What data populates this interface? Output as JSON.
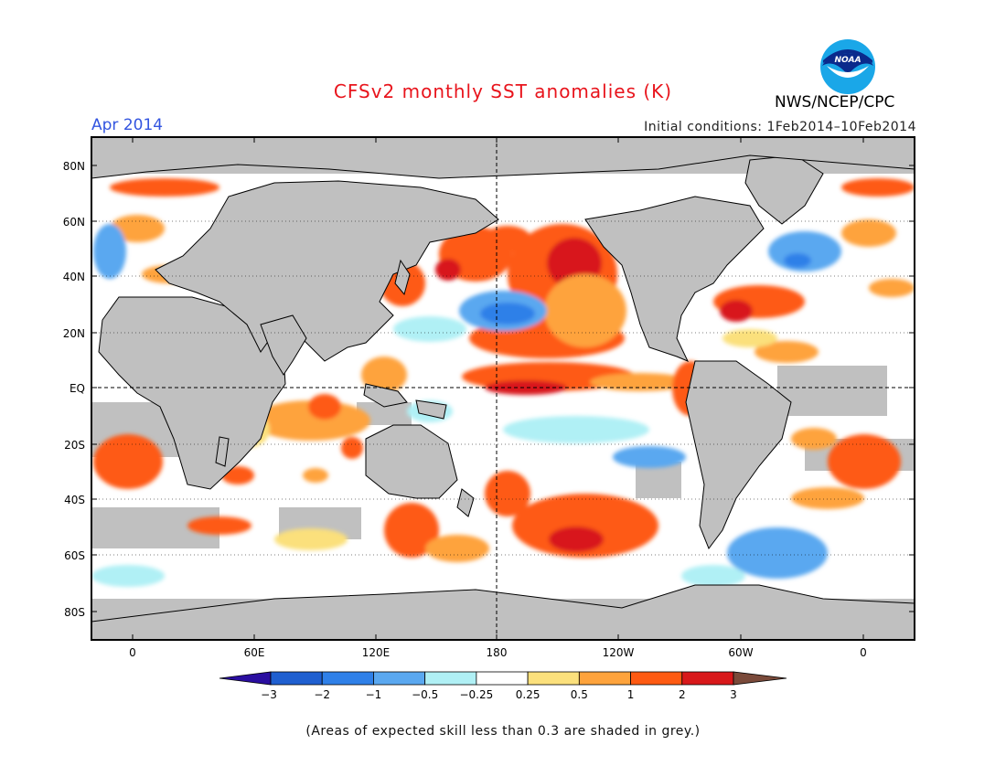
{
  "header": {
    "title": "CFSv2 monthly SST anomalies (K)",
    "month": "Apr 2014",
    "initial_conditions": "Initial conditions: 1Feb2014–10Feb2014",
    "agency": "NWS/NCEP/CPC",
    "logo_text": "NOAA"
  },
  "map": {
    "lat_labels": [
      "80N",
      "60N",
      "40N",
      "20N",
      "EQ",
      "20S",
      "40S",
      "60S",
      "80S"
    ],
    "lon_labels": [
      "0",
      "60E",
      "120E",
      "180",
      "120W",
      "60W",
      "0"
    ],
    "colors": {
      "land": "#c0c0c0",
      "masked_ocean": "#c0c0c0",
      "ocean_neutral": "#ffffff",
      "reference_lines": "#000000"
    }
  },
  "colorbar": {
    "tick_labels": [
      "−3",
      "−2",
      "−1",
      "−0.5",
      "−0.25",
      "0.25",
      "0.5",
      "1",
      "2",
      "3"
    ],
    "bins": [
      {
        "range": "< -3",
        "color": "#2a0ea0"
      },
      {
        "range": "-3 to -2",
        "color": "#1f5fd0"
      },
      {
        "range": "-2 to -1",
        "color": "#2f80e8"
      },
      {
        "range": "-1 to -0.5",
        "color": "#5aa8f0"
      },
      {
        "range": "-0.5 to -0.25",
        "color": "#b0f0f5"
      },
      {
        "range": "-0.25 to 0.25",
        "color": "#ffffff"
      },
      {
        "range": "0.25 to 0.5",
        "color": "#fbe07c"
      },
      {
        "range": "0.5 to 1",
        "color": "#fea33c"
      },
      {
        "range": "1 to 2",
        "color": "#fe5a12"
      },
      {
        "range": "2 to 3",
        "color": "#d8181a"
      },
      {
        "range": "> 3",
        "color": "#9c0a0a"
      }
    ],
    "over_color": "#7a4a3a"
  },
  "footnote": "(Areas of expected skill less than 0.3 are shaded in grey.)"
}
